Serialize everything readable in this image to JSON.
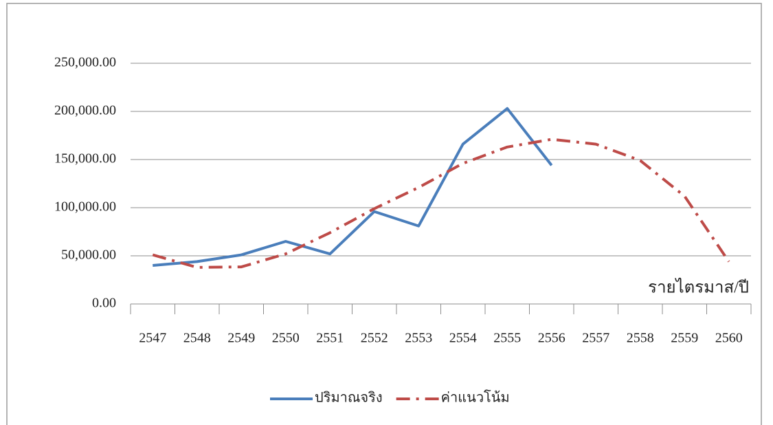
{
  "chart_data": {
    "type": "line",
    "categories": [
      "2547",
      "2548",
      "2549",
      "2550",
      "2551",
      "2552",
      "2553",
      "2554",
      "2555",
      "2556",
      "2557",
      "2558",
      "2559",
      "2560"
    ],
    "series": [
      {
        "name": "ปริมาณจริง",
        "color": "#4a7ebb",
        "style": "solid",
        "values": [
          40000,
          44000,
          51000,
          65000,
          52000,
          96000,
          81000,
          166000,
          203000,
          144000,
          null,
          null,
          null,
          null
        ]
      },
      {
        "name": "ค่าแนวโน้ม",
        "color": "#be4b48",
        "style": "dash-dot",
        "values": [
          51000,
          38000,
          38500,
          52000,
          74000,
          99000,
          121000,
          146000,
          163000,
          171000,
          166000,
          149000,
          112000,
          44000
        ]
      }
    ],
    "ylim": [
      0,
      250000
    ],
    "yticks": [
      {
        "value": 0,
        "label": "0.00"
      },
      {
        "value": 50000,
        "label": "50,000.00"
      },
      {
        "value": 100000,
        "label": "100,000.00"
      },
      {
        "value": 150000,
        "label": "150,000.00"
      },
      {
        "value": 200000,
        "label": "200,000.00"
      },
      {
        "value": 250000,
        "label": "250,000.00"
      }
    ],
    "grid": true,
    "annotation": "รายไตรมาส/ปี",
    "legend": "bottom"
  }
}
